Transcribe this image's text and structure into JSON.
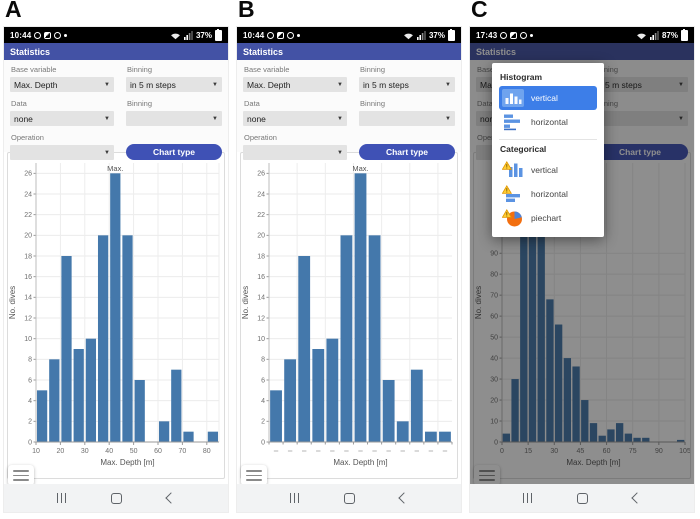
{
  "colors": {
    "app_bar": "#4352a5",
    "accent_button": "#3f51b5",
    "bar_fill": "#4478ab",
    "popup_selected": "#3d7ee8",
    "popup_icon_bar": "#5b93e2",
    "warning_fill": "#ffcc33",
    "warning_stroke": "#e09600",
    "pie_orange": "#f26f10",
    "pie_blue": "#4e84d8"
  },
  "icons": {
    "dropdown_arrow": "▼"
  },
  "panels": [
    {
      "label": "A",
      "status": {
        "time": "10:44",
        "battery": "37%"
      },
      "app_title": "Statistics",
      "form": {
        "base_variable_label": "Base variable",
        "base_variable_value": "Max. Depth",
        "binning1_label": "Binning",
        "binning1_value": "in 5 m steps",
        "data_label": "Data",
        "data_value": "none",
        "binning2_label": "Binning",
        "binning2_value": "",
        "operation_label": "Operation",
        "operation_value": "",
        "chart_type_button": "Chart type"
      },
      "dimmed": false,
      "show_popup": false
    },
    {
      "label": "B",
      "status": {
        "time": "10:44",
        "battery": "37%"
      },
      "app_title": "Statistics",
      "form": {
        "base_variable_label": "Base variable",
        "base_variable_value": "Max. Depth",
        "binning1_label": "Binning",
        "binning1_value": "in 5 m steps",
        "data_label": "Data",
        "data_value": "none",
        "binning2_label": "Binning",
        "binning2_value": "",
        "operation_label": "Operation",
        "operation_value": "",
        "chart_type_button": "Chart type"
      },
      "dimmed": false,
      "show_popup": false
    },
    {
      "label": "C",
      "status": {
        "time": "17:43",
        "battery": "87%"
      },
      "app_title": "Statistics",
      "form": {
        "base_variable_label": "Base variable",
        "base_variable_value": "Max. Depth",
        "binning1_label": "Binning",
        "binning1_value": "in 5 m steps",
        "data_label": "Data",
        "data_value": "none",
        "binning2_label": "Binning",
        "binning2_value": "",
        "operation_label": "Operation",
        "operation_value": "",
        "chart_type_button": "Chart type"
      },
      "dimmed": true,
      "show_popup": true
    }
  ],
  "popup": {
    "sections": [
      {
        "header": "Histogram",
        "items": [
          {
            "label": "vertical",
            "icon": "histogram-vertical-icon",
            "selected": true
          },
          {
            "label": "horizontal",
            "icon": "histogram-horizontal-icon",
            "selected": false
          }
        ]
      },
      {
        "header": "Categorical",
        "items": [
          {
            "label": "vertical",
            "icon": "categorical-vertical-icon",
            "selected": false
          },
          {
            "label": "horizontal",
            "icon": "categorical-horizontal-icon",
            "selected": false
          },
          {
            "label": "piechart",
            "icon": "piechart-icon",
            "selected": false
          }
        ]
      }
    ]
  },
  "chart_data": [
    {
      "type": "bar",
      "panel": "A",
      "title": "",
      "xlabel": "Max. Depth [m]",
      "ylabel": "No. dives",
      "bin_start": 10,
      "bin_size": 5,
      "values": [
        5,
        8,
        18,
        9,
        10,
        20,
        26,
        20,
        6,
        0,
        2,
        7,
        1,
        0,
        1
      ],
      "x_ticks": [
        10,
        20,
        30,
        40,
        50,
        60,
        70,
        80
      ],
      "y_ticks": [
        0,
        2,
        4,
        6,
        8,
        10,
        12,
        14,
        16,
        18,
        20,
        22,
        24,
        26
      ],
      "ylim": [
        0,
        27
      ],
      "x_tick_style": "numbers",
      "grid": true,
      "legend": false,
      "annotation": {
        "text": "Max.",
        "bin_index": 6
      }
    },
    {
      "type": "bar",
      "panel": "B",
      "title": "",
      "xlabel": "Max. Depth [m]",
      "ylabel": "No. dives",
      "bin_start": 10,
      "bin_size": 5,
      "values": [
        5,
        8,
        18,
        9,
        10,
        20,
        26,
        20,
        6,
        2,
        7,
        1,
        1
      ],
      "x_ticks": [],
      "y_ticks": [
        0,
        2,
        4,
        6,
        8,
        10,
        12,
        14,
        16,
        18,
        20,
        22,
        24,
        26
      ],
      "ylim": [
        0,
        27
      ],
      "x_tick_style": "dashes",
      "grid": true,
      "legend": false,
      "annotation": {
        "text": "Max.",
        "bin_index": 6
      }
    },
    {
      "type": "bar",
      "panel": "C",
      "title": "",
      "xlabel": "Max. Depth [m]",
      "ylabel": "No. dives",
      "bin_start": 0,
      "bin_size": 5,
      "values": [
        4,
        30,
        118,
        132,
        125,
        68,
        56,
        40,
        36,
        20,
        9,
        3,
        6,
        9,
        4,
        2,
        2,
        0,
        0,
        0,
        1
      ],
      "x_ticks": [
        0,
        15,
        30,
        45,
        60,
        75,
        90,
        105
      ],
      "y_ticks": [
        0,
        10,
        20,
        30,
        40,
        50,
        60,
        70,
        80,
        90
      ],
      "ylim": [
        0,
        133
      ],
      "x_tick_style": "numbers",
      "grid": true,
      "legend": false
    }
  ]
}
